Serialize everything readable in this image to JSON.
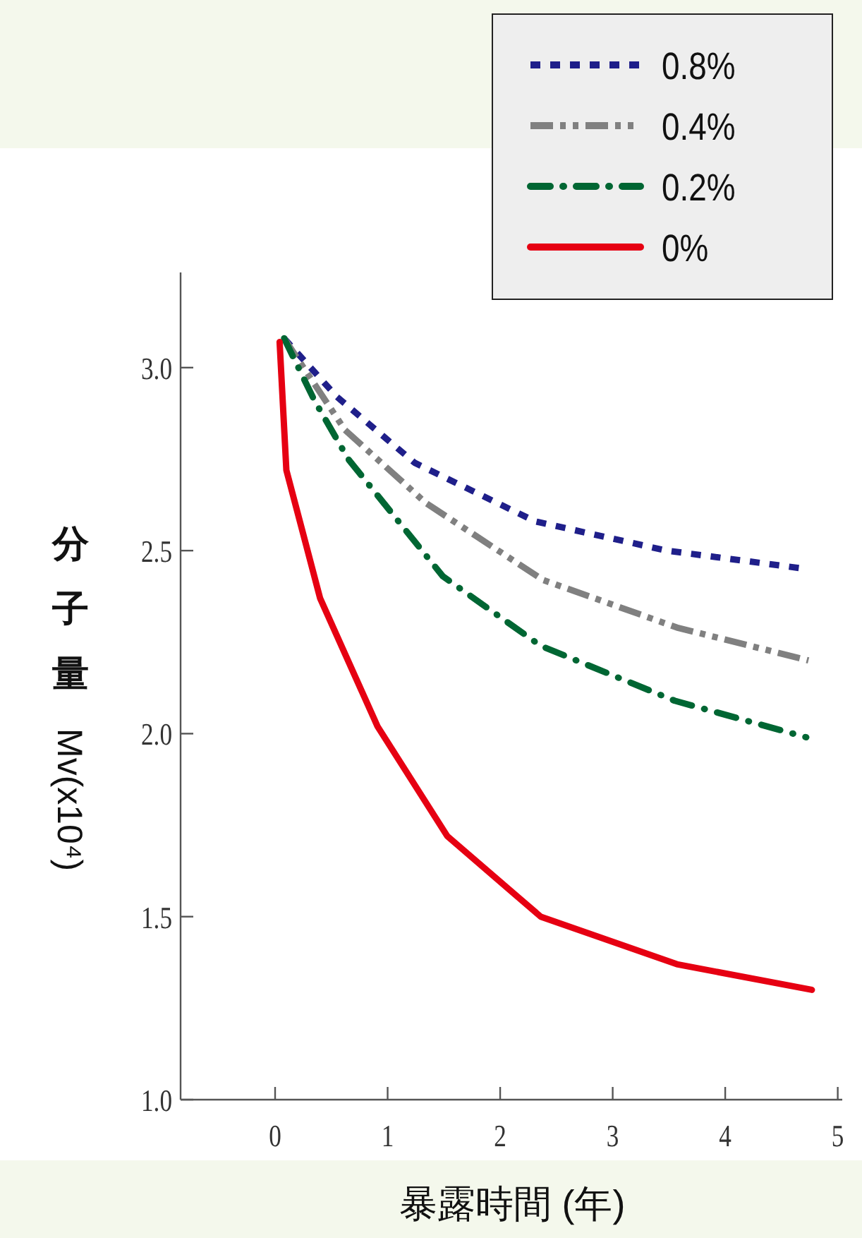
{
  "chart_data": {
    "type": "line",
    "xlabel": "暴露時間 (年)",
    "ylabel": "分子量 Mv(x10⁴)",
    "xlim": [
      -0.84,
      5.04
    ],
    "xticks": [
      0,
      1,
      2,
      3,
      4,
      5
    ],
    "ylim": [
      1.0,
      3.26
    ],
    "yticks": [
      {
        "value": 1,
        "label": "1.0"
      },
      {
        "value": 1.5,
        "label": "1.5"
      },
      {
        "value": 2,
        "label": "2.0"
      },
      {
        "value": 2.5,
        "label": "2.5"
      },
      {
        "value": 3,
        "label": "3.0"
      }
    ],
    "grid": false,
    "legend": "top right",
    "series": [
      {
        "name": "0.8%",
        "color": "#1f1f8a",
        "line_style": "dotted",
        "x": [
          0.08,
          0.55,
          1.24,
          2.31,
          3.48,
          4.72
        ],
        "values": [
          3.08,
          2.92,
          2.74,
          2.58,
          2.5,
          2.45
        ]
      },
      {
        "name": "0.4%",
        "color": "#808080",
        "line_style": "dashdotdot",
        "x": [
          0.08,
          0.62,
          1.34,
          2.38,
          3.57,
          4.74
        ],
        "values": [
          3.08,
          2.83,
          2.63,
          2.42,
          2.29,
          2.2
        ]
      },
      {
        "name": "0.2%",
        "color": "#006633",
        "line_style": "dashdot",
        "x": [
          0.08,
          0.35,
          0.65,
          1.49,
          2.36,
          3.55,
          4.72
        ],
        "values": [
          3.08,
          2.91,
          2.75,
          2.43,
          2.24,
          2.09,
          1.99
        ]
      },
      {
        "name": "0%",
        "color": "#e60012",
        "line_style": "solid",
        "x": [
          0.04,
          0.1,
          0.4,
          0.91,
          1.53,
          2.36,
          3.57,
          4.77
        ],
        "values": [
          3.07,
          2.72,
          2.37,
          2.02,
          1.72,
          1.5,
          1.37,
          1.3
        ]
      }
    ]
  }
}
